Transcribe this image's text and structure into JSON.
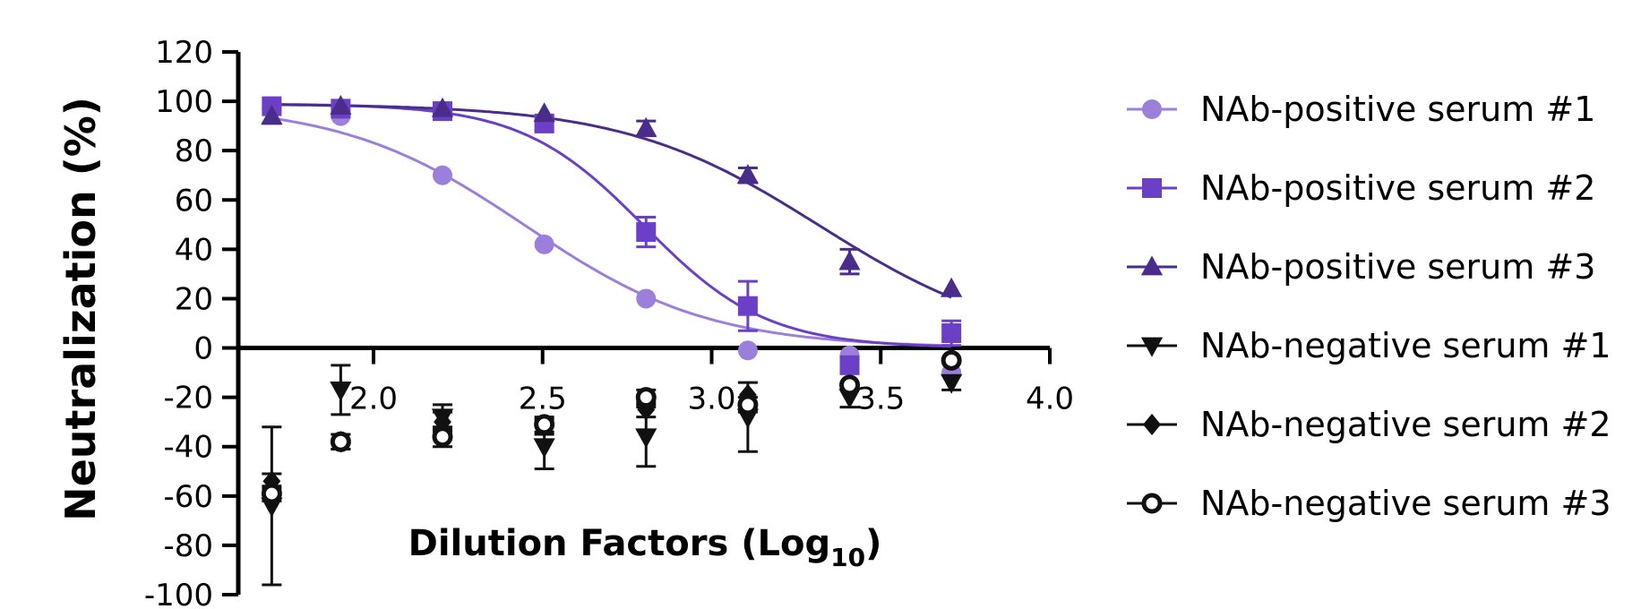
{
  "chart_data": {
    "type": "scatter",
    "title": "",
    "xlabel": "Dilution Factors (Log",
    "xlabel_subscript": "10",
    "xlabel_close": ")",
    "ylabel": "Neutralization (%)",
    "xlim": [
      1.6,
      4.0
    ],
    "ylim": [
      -100,
      120
    ],
    "x_ticks": [
      2.0,
      2.5,
      3.0,
      3.5,
      4.0
    ],
    "x_tick_labels": [
      "2.0",
      "2.5",
      "3.0",
      "3.5",
      "4.0"
    ],
    "y_ticks": [
      120,
      100,
      80,
      60,
      40,
      20,
      0,
      -20,
      -40,
      -60,
      -80,
      -100
    ],
    "y_tick_labels": [
      "120",
      "100",
      "80",
      "60",
      "40",
      "20",
      "0",
      "-20",
      "-40",
      "-60",
      "-80",
      "-100"
    ],
    "legend_position": "right",
    "grid": false,
    "x": [
      1.699,
      1.903,
      2.204,
      2.505,
      2.806,
      3.107,
      3.408,
      3.709
    ],
    "series": [
      {
        "name": "NAb-positive serum #1",
        "marker": "circle",
        "color": "#9b7fdb",
        "values": [
          97,
          94,
          70,
          42,
          20,
          -1,
          -3,
          -10
        ],
        "errors": [
          2,
          2,
          2,
          2,
          2,
          2,
          2,
          2
        ],
        "fit": {
          "top": 99,
          "bottom": 0,
          "logIC50": 2.45,
          "hill": 1.6
        }
      },
      {
        "name": "NAb-positive serum #2",
        "marker": "square",
        "color": "#6c3fc7",
        "values": [
          98,
          97,
          96,
          91,
          47,
          17,
          -7,
          6
        ],
        "errors": [
          2,
          2,
          2,
          3,
          6,
          10,
          3,
          5
        ],
        "fit": {
          "top": 99,
          "bottom": 0,
          "logIC50": 2.8,
          "hill": 2.4
        }
      },
      {
        "name": "NAb-positive serum #3",
        "marker": "triangle-up",
        "color": "#4a2d8a",
        "values": [
          94,
          98,
          97,
          95,
          89,
          70,
          35,
          24
        ],
        "errors": [
          3,
          2,
          2,
          2,
          3,
          3,
          5,
          2
        ],
        "fit": {
          "top": 99,
          "bottom": 0,
          "logIC50": 3.32,
          "hill": 1.5
        }
      },
      {
        "name": "NAb-negative serum #1",
        "marker": "triangle-down",
        "color": "#111111",
        "values": [
          -64,
          -17,
          -28,
          -40,
          -36,
          -28,
          -20,
          -14
        ],
        "errors": [
          32,
          10,
          5,
          9,
          12,
          14,
          4,
          3
        ],
        "fit": null
      },
      {
        "name": "NAb-negative serum #2",
        "marker": "diamond",
        "color": "#111111",
        "values": [
          -54,
          -38,
          -30,
          -32,
          -25,
          -19,
          -17,
          -4
        ],
        "errors": [
          3,
          3,
          4,
          3,
          3,
          2,
          2,
          2
        ],
        "fit": null
      },
      {
        "name": "NAb-negative serum #3",
        "marker": "circle-open",
        "color": "#111111",
        "values": [
          -59,
          -38,
          -36,
          -31,
          -20,
          -23,
          -15,
          -5
        ],
        "errors": [
          3,
          3,
          4,
          3,
          3,
          3,
          2,
          2
        ],
        "fit": null
      }
    ]
  }
}
